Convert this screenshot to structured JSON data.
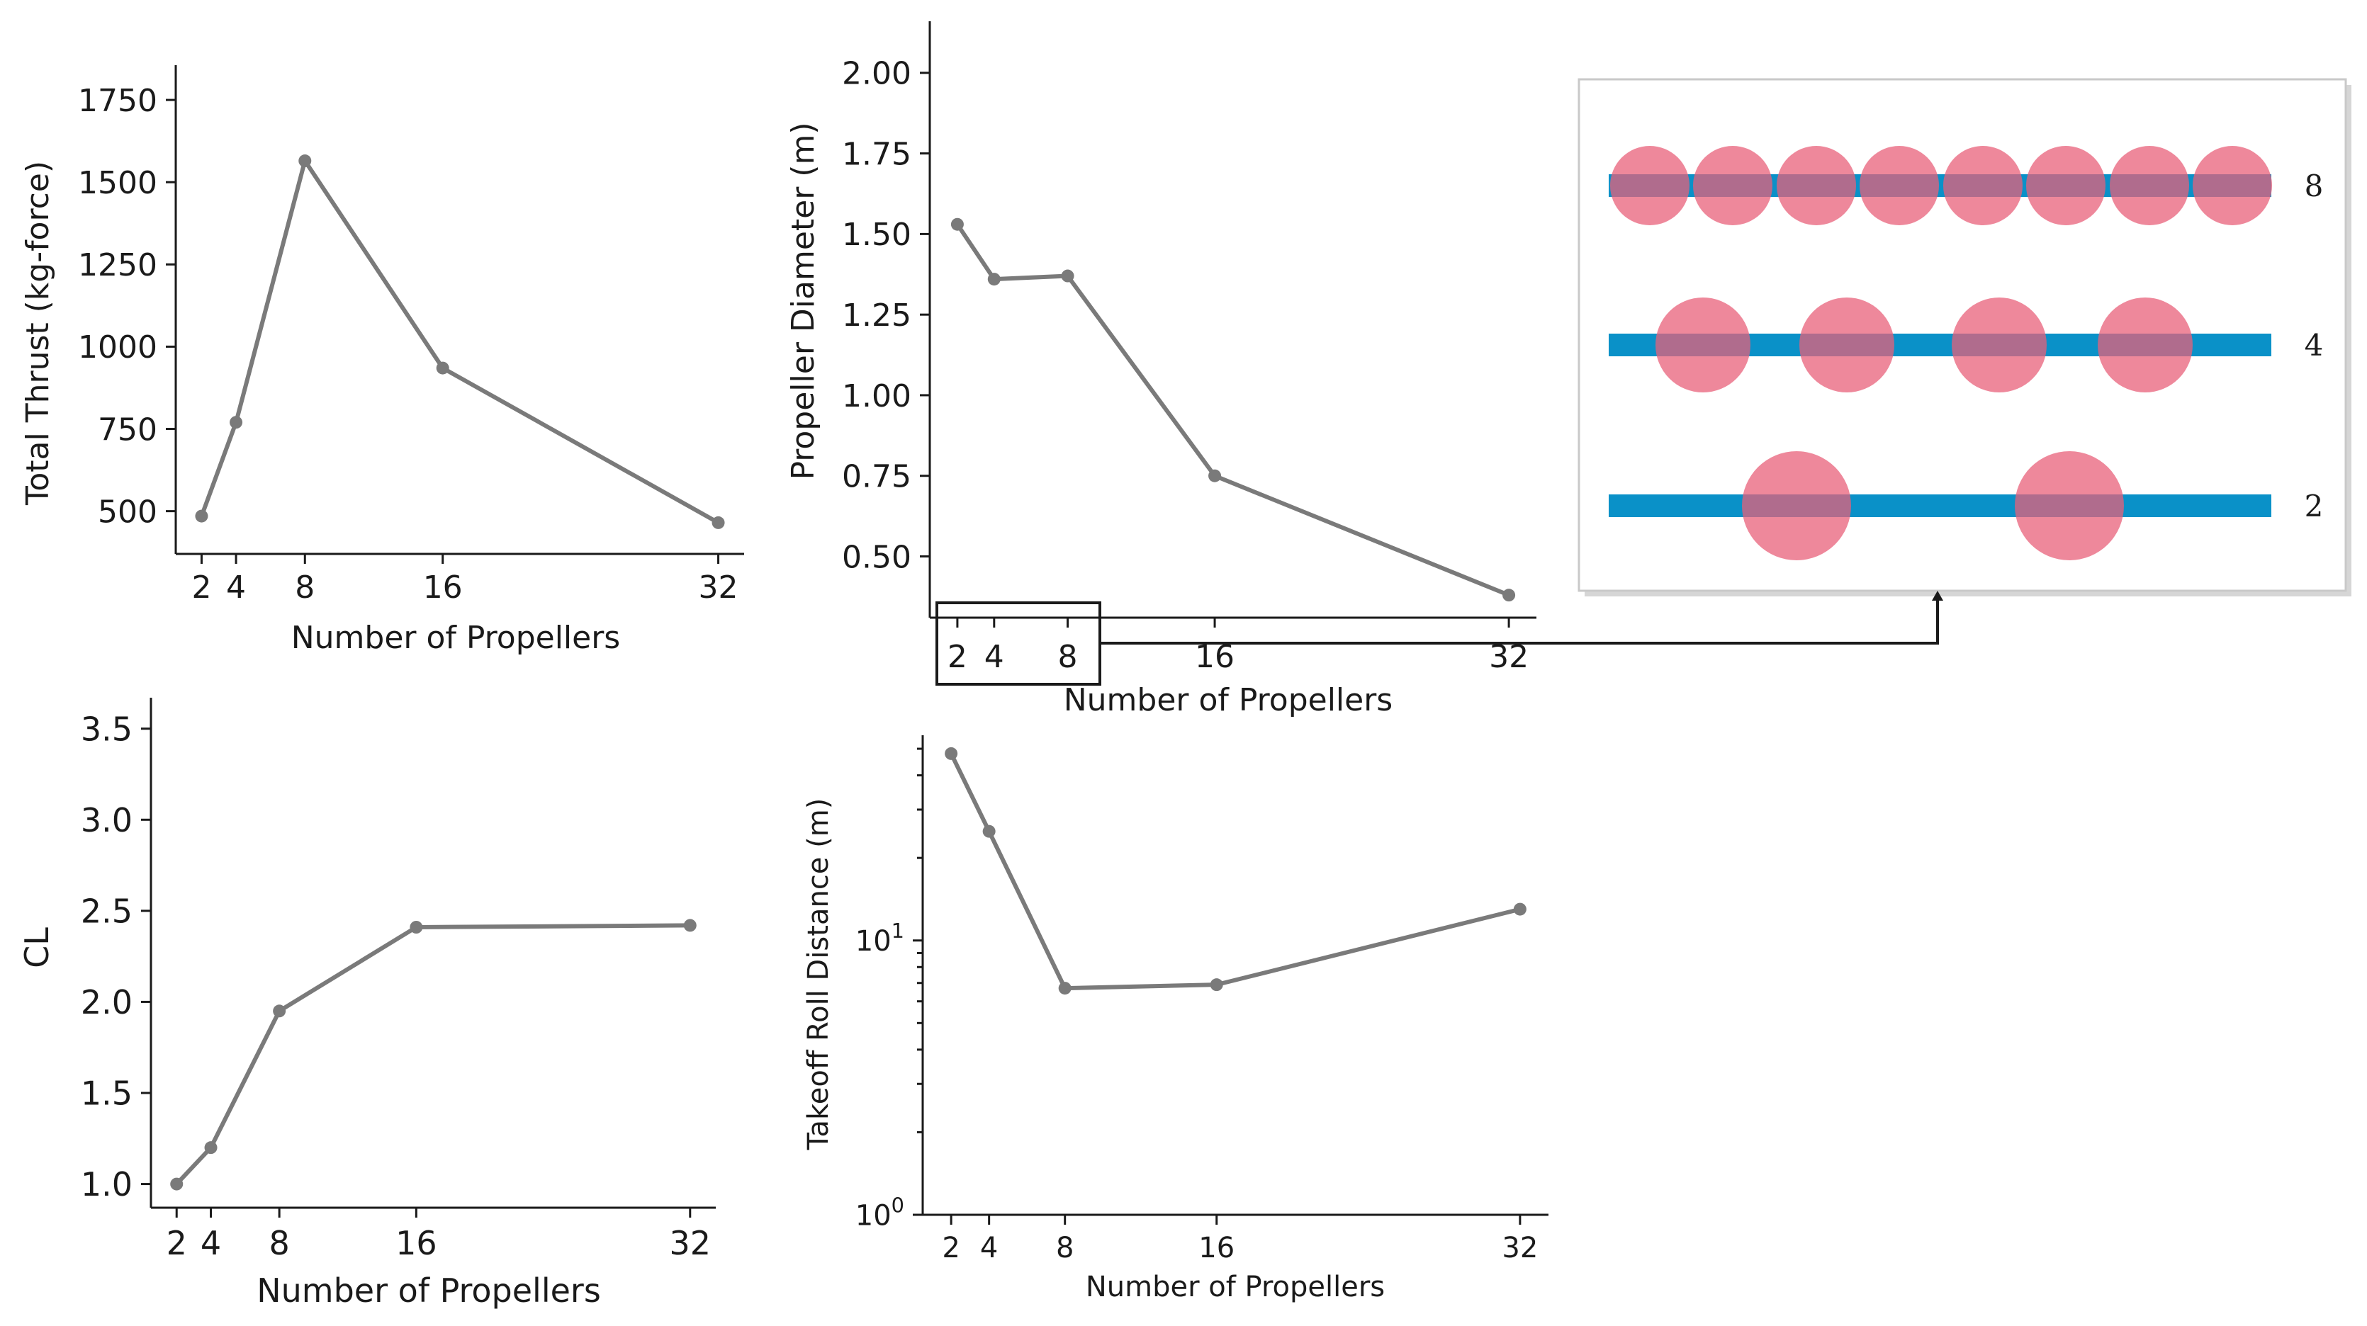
{
  "chart_data": [
    {
      "id": "thrust",
      "type": "line",
      "xlabel": "Number of Propellers",
      "ylabel": "Total Thrust (kg-force)",
      "x": [
        2,
        4,
        8,
        16,
        32
      ],
      "y": [
        485,
        770,
        1565,
        935,
        465
      ],
      "xticks": [
        2,
        4,
        8,
        16,
        32
      ],
      "yticks": [
        500,
        750,
        1000,
        1250,
        1500,
        1750
      ],
      "xlim": [
        0.5,
        33.5
      ],
      "ylim": [
        370,
        1860
      ],
      "yscale": "linear"
    },
    {
      "id": "diameter",
      "type": "line",
      "xlabel": "Number of Propellers",
      "ylabel": "Propeller Diameter (m)",
      "x": [
        2,
        4,
        8,
        16,
        32
      ],
      "y": [
        1.53,
        1.36,
        1.37,
        0.75,
        0.38
      ],
      "xticks": [
        2,
        4,
        8,
        16,
        32
      ],
      "yticks": [
        0.5,
        0.75,
        1.0,
        1.25,
        1.5,
        1.75,
        2.0
      ],
      "ytick_labels": [
        "0.50",
        "0.75",
        "1.00",
        "1.25",
        "1.50",
        "1.75",
        "2.00"
      ],
      "xlim": [
        0.5,
        33.5
      ],
      "ylim": [
        0.31,
        2.16
      ],
      "yscale": "linear"
    },
    {
      "id": "cl",
      "type": "line",
      "xlabel": "Number of Propellers",
      "ylabel": "CL",
      "x": [
        2,
        4,
        8,
        16,
        32
      ],
      "y": [
        1.0,
        1.2,
        1.95,
        2.41,
        2.42
      ],
      "xticks": [
        2,
        4,
        8,
        16,
        32
      ],
      "yticks": [
        1.0,
        1.5,
        2.0,
        2.5,
        3.0,
        3.5
      ],
      "ytick_labels": [
        "1.0",
        "1.5",
        "2.0",
        "2.5",
        "3.0",
        "3.5"
      ],
      "xlim": [
        0.5,
        33.5
      ],
      "ylim": [
        0.87,
        3.67
      ],
      "yscale": "linear"
    },
    {
      "id": "takeoff",
      "type": "line",
      "xlabel": "Number of Propellers",
      "ylabel": "Takeoff Roll Distance (m)",
      "x": [
        2,
        4,
        8,
        16,
        32
      ],
      "y": [
        48,
        25,
        6.7,
        6.9,
        13
      ],
      "xticks": [
        2,
        4,
        8,
        16,
        32
      ],
      "yticks": [
        1,
        10
      ],
      "ytick_base": [
        "10",
        "10"
      ],
      "ytick_exp": [
        "0",
        "1"
      ],
      "xlim": [
        0.5,
        33.5
      ],
      "ylim": [
        1,
        56
      ],
      "yscale": "log"
    }
  ],
  "inset": {
    "rows": [
      {
        "label": "8",
        "count": 8
      },
      {
        "label": "4",
        "count": 4
      },
      {
        "label": "2",
        "count": 2
      }
    ]
  },
  "colors": {
    "series": "#7a7a7a",
    "rod": "#0a91c8",
    "propeller": "#e8607a"
  }
}
